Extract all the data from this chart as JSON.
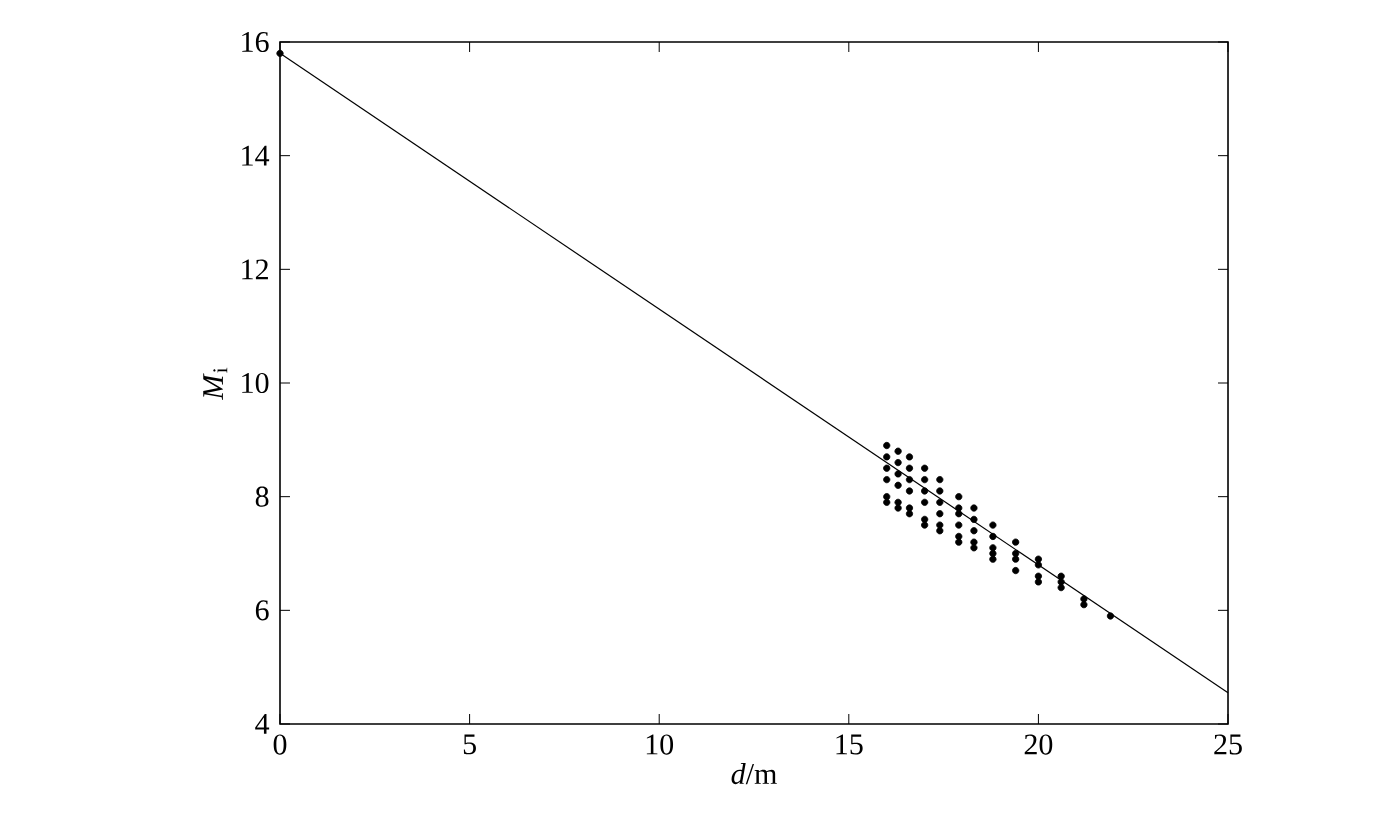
{
  "chart_data": {
    "type": "scatter",
    "xlabel": "*d*/m",
    "ylabel": "*M*$_{i}$",
    "xlim": [
      0,
      25
    ],
    "ylim": [
      4,
      16
    ],
    "xticks": [
      0,
      5,
      10,
      15,
      20,
      25
    ],
    "yticks": [
      4,
      6,
      8,
      10,
      12,
      14,
      16
    ],
    "series": [
      {
        "marker": "circle",
        "color": "#000000",
        "x": [
          0,
          16.0,
          16.0,
          16.0,
          16.0,
          16.0,
          16.0,
          16.3,
          16.3,
          16.3,
          16.3,
          16.3,
          16.3,
          16.6,
          16.6,
          16.6,
          16.6,
          16.6,
          16.6,
          17.0,
          17.0,
          17.0,
          17.0,
          17.0,
          17.0,
          17.4,
          17.4,
          17.4,
          17.4,
          17.4,
          17.4,
          17.9,
          17.9,
          17.9,
          17.9,
          17.9,
          17.9,
          18.3,
          18.3,
          18.3,
          18.3,
          18.3,
          18.8,
          18.8,
          18.8,
          18.8,
          18.8,
          19.4,
          19.4,
          19.4,
          19.4,
          20.0,
          20.0,
          20.0,
          20.0,
          20.6,
          20.6,
          20.6,
          21.2,
          21.2,
          21.9
        ],
        "values": [
          15.8,
          8.9,
          8.7,
          8.5,
          8.3,
          8.0,
          7.9,
          8.8,
          8.6,
          8.4,
          8.2,
          7.9,
          7.8,
          8.7,
          8.5,
          8.3,
          8.1,
          7.8,
          7.7,
          8.5,
          8.3,
          8.1,
          7.9,
          7.6,
          7.5,
          8.3,
          8.1,
          7.9,
          7.7,
          7.5,
          7.4,
          8.0,
          7.8,
          7.7,
          7.5,
          7.3,
          7.2,
          7.8,
          7.6,
          7.4,
          7.2,
          7.1,
          7.5,
          7.3,
          7.1,
          7.0,
          6.9,
          7.2,
          7.0,
          6.9,
          6.7,
          6.9,
          6.8,
          6.6,
          6.5,
          6.6,
          6.5,
          6.4,
          6.2,
          6.1,
          5.9
        ]
      },
      {
        "type": "line",
        "marker": "none",
        "color": "#000000",
        "x": [
          0,
          25
        ],
        "values": [
          15.8,
          4.55
        ]
      }
    ]
  }
}
